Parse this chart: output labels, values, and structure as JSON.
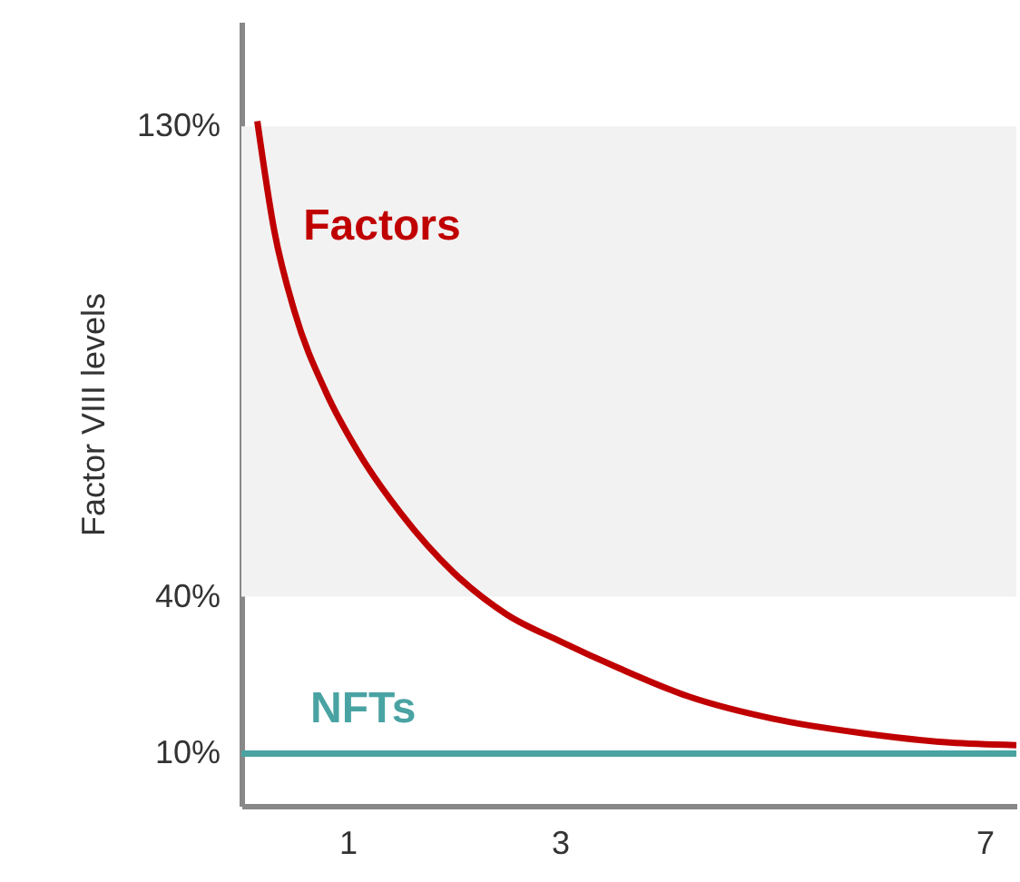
{
  "chart_data": {
    "type": "line",
    "ylabel": "Factor VIII levels",
    "xlim": [
      0,
      7.3
    ],
    "xticks": [
      1,
      3,
      7
    ],
    "ylim": [
      0,
      150
    ],
    "yticks": [
      {
        "value": 10,
        "label": "10%"
      },
      {
        "value": 40,
        "label": "40%"
      },
      {
        "value": 130,
        "label": "130%"
      }
    ],
    "grid": false,
    "marker": "none",
    "line_style": "solid",
    "bands": [
      {
        "axis": "y",
        "from": 40,
        "to": 130,
        "color": "#f2f2f2"
      }
    ],
    "series": [
      {
        "name": "Factors",
        "color": "#c00000",
        "x": [
          0.15,
          0.31,
          0.5,
          0.8,
          1.1,
          1.5,
          2.0,
          2.5,
          3.0,
          3.56,
          4.2,
          5.0,
          5.85,
          6.67,
          7.3
        ],
        "values": [
          131,
          110,
          94.6,
          79,
          67.7,
          56,
          44.6,
          36.6,
          31.5,
          26.3,
          21,
          16.7,
          13.9,
          12.1,
          11.6
        ]
      },
      {
        "name": "NFTs",
        "color": "#4aa3a3",
        "x": [
          0,
          7.3
        ],
        "values": [
          10,
          10
        ]
      }
    ]
  }
}
